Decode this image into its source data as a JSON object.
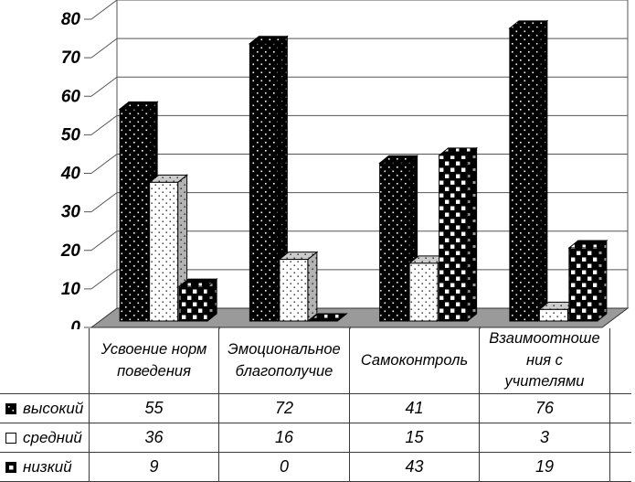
{
  "chart_data": {
    "type": "bar",
    "style": "3d-clustered-column",
    "title": "",
    "xlabel": "",
    "ylabel": "",
    "categories": [
      "Усвоение норм\nповедения",
      "Эмоциональное\nблагополучие",
      "Самоконтроль",
      "Взаимоотноше\nния с\nучителями"
    ],
    "series": [
      {
        "name": "высокий",
        "values": [
          55,
          72,
          41,
          76
        ],
        "pattern": "white-dots-on-black"
      },
      {
        "name": "средний",
        "values": [
          36,
          16,
          15,
          3
        ],
        "pattern": "black-dots-on-white"
      },
      {
        "name": "низкий",
        "values": [
          9,
          0,
          43,
          19
        ],
        "pattern": "white-squares-on-black"
      }
    ],
    "ylim": [
      0,
      80
    ],
    "yticks": [
      0,
      10,
      20,
      30,
      40,
      50,
      60,
      70,
      80
    ],
    "grid": true,
    "legend_position": "data-table-left",
    "colors": {
      "bar_black": "#000000",
      "bar_white": "#ffffff",
      "floor": "#9a9a9a",
      "side_gray": "#b3b3b3",
      "top_gray": "#cccccc",
      "gridline": "#555555",
      "table_border": "#3a3a3a",
      "text": "#000000"
    }
  }
}
